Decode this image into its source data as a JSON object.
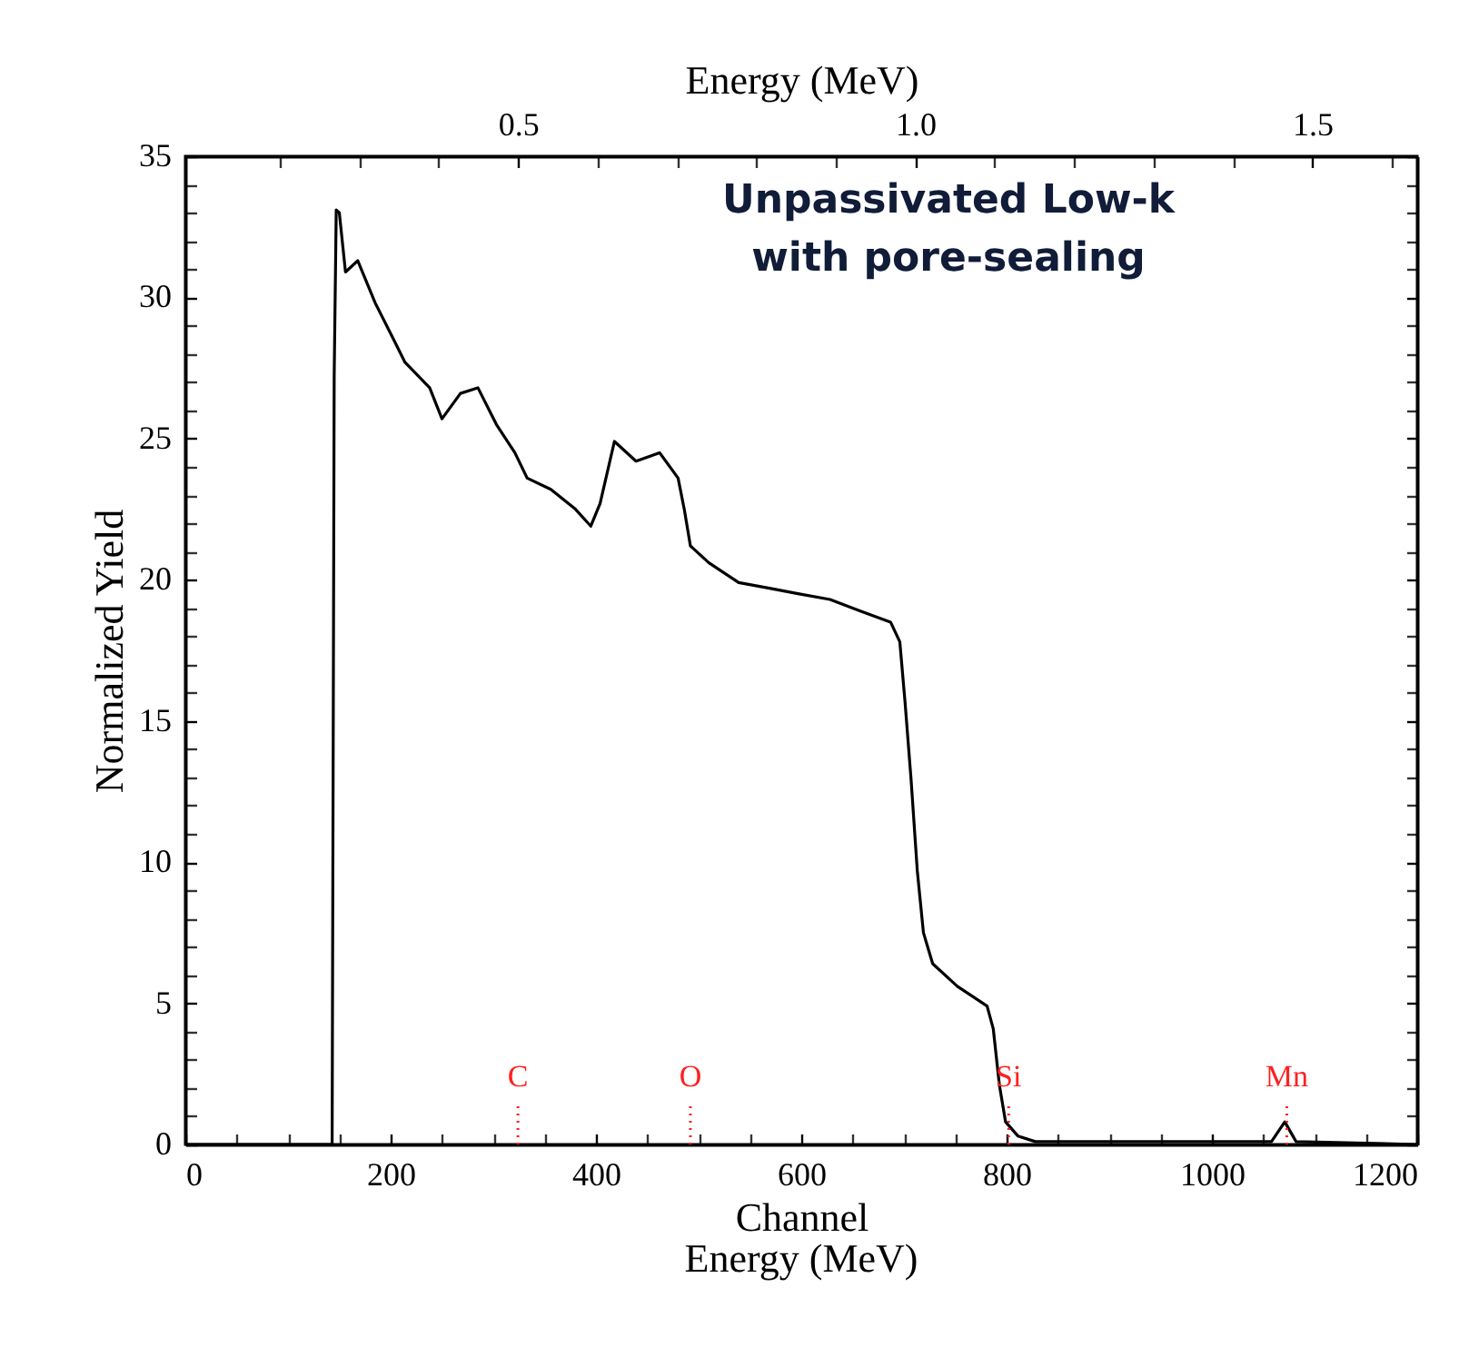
{
  "chart_data": {
    "type": "line",
    "title": "Unpassivated Low-k\nwith pore-sealing",
    "xlabel": "Channel",
    "ylabel": "Normalized Yield",
    "x2label": "Energy (MeV)",
    "annotations": [
      "Energy (MeV)"
    ],
    "ref_lines": [
      {
        "axis": "x",
        "value": 324,
        "label": "C",
        "color": "#ff2020",
        "line_style": "dotted"
      },
      {
        "axis": "x",
        "value": 492,
        "label": "O",
        "color": "#ff2020",
        "line_style": "dotted"
      },
      {
        "axis": "x",
        "value": 802,
        "label": "Si",
        "color": "#ff2020",
        "line_style": "dotted"
      },
      {
        "axis": "x",
        "value": 1073,
        "label": "Mn",
        "color": "#ff2020",
        "line_style": "dotted"
      }
    ],
    "series": [
      {
        "color": "#000000",
        "x": [
          0,
          143,
          145,
          147,
          150,
          156,
          168,
          185,
          203,
          214,
          238,
          250,
          268,
          285,
          303,
          321,
          333,
          356,
          380,
          395,
          404,
          418,
          439,
          462,
          480,
          486,
          492,
          510,
          539,
          569,
          598,
          628,
          657,
          687,
          696,
          701,
          707,
          713,
          719,
          728,
          752,
          781,
          787,
          793,
          799,
          811,
          828,
          1058,
          1071,
          1082,
          1200
        ],
        "values": [
          0,
          0,
          27.2,
          33.1,
          33.0,
          30.9,
          31.3,
          29.8,
          28.5,
          27.7,
          26.8,
          25.7,
          26.6,
          26.8,
          25.5,
          24.5,
          23.6,
          23.2,
          22.5,
          21.9,
          22.7,
          24.9,
          24.2,
          24.5,
          23.6,
          22.5,
          21.2,
          20.6,
          19.9,
          19.7,
          19.5,
          19.3,
          18.9,
          18.5,
          17.8,
          15.7,
          12.9,
          9.7,
          7.5,
          6.4,
          5.6,
          4.9,
          4.1,
          2.1,
          0.8,
          0.3,
          0.1,
          0.1,
          0.8,
          0.1,
          0
        ]
      }
    ],
    "xlim": [
      0,
      1200
    ],
    "xticks": [
      0,
      {
        "value": 50,
        "label": null
      },
      {
        "value": 100,
        "label": null
      },
      {
        "value": 150,
        "label": null
      },
      200,
      {
        "value": 250,
        "label": null
      },
      {
        "value": 300,
        "label": null
      },
      {
        "value": 350,
        "label": null
      },
      400,
      {
        "value": 450,
        "label": null
      },
      {
        "value": 500,
        "label": null
      },
      {
        "value": 550,
        "label": null
      },
      600,
      {
        "value": 650,
        "label": null
      },
      {
        "value": 700,
        "label": null
      },
      {
        "value": 750,
        "label": null
      },
      800,
      {
        "value": 850,
        "label": null
      },
      {
        "value": 900,
        "label": null
      },
      {
        "value": 950,
        "label": null
      },
      1000,
      {
        "value": 1050,
        "label": null
      },
      {
        "value": 1100,
        "label": null
      },
      {
        "value": 1150,
        "label": null
      },
      1200
    ],
    "ylim": [
      0,
      35
    ],
    "yticks": [
      0,
      {
        "value": 1,
        "label": null
      },
      {
        "value": 2,
        "label": null
      },
      {
        "value": 3,
        "label": null
      },
      {
        "value": 4,
        "label": null
      },
      5,
      {
        "value": 6,
        "label": null
      },
      {
        "value": 7,
        "label": null
      },
      {
        "value": 8,
        "label": null
      },
      {
        "value": 9,
        "label": null
      },
      10,
      {
        "value": 11,
        "label": null
      },
      {
        "value": 12,
        "label": null
      },
      {
        "value": 13,
        "label": null
      },
      {
        "value": 14,
        "label": null
      },
      15,
      {
        "value": 16,
        "label": null
      },
      {
        "value": 17,
        "label": null
      },
      {
        "value": 18,
        "label": null
      },
      {
        "value": 19,
        "label": null
      },
      20,
      {
        "value": 21,
        "label": null
      },
      {
        "value": 22,
        "label": null
      },
      {
        "value": 23,
        "label": null
      },
      {
        "value": 24,
        "label": null
      },
      25,
      {
        "value": 26,
        "label": null
      },
      {
        "value": 27,
        "label": null
      },
      {
        "value": 28,
        "label": null
      },
      {
        "value": 29,
        "label": null
      },
      30,
      {
        "value": 31,
        "label": null
      },
      {
        "value": 32,
        "label": null
      },
      {
        "value": 33,
        "label": null
      },
      {
        "value": 34,
        "label": null
      },
      35
    ],
    "x2lim": [
      0.081,
      1.632
    ],
    "x2ticks": [
      {
        "value": 0.2,
        "label": null
      },
      {
        "value": 0.3,
        "label": null
      },
      {
        "value": 0.4,
        "label": null
      },
      {
        "value": 0.5,
        "label": "0.5"
      },
      {
        "value": 0.6,
        "label": null
      },
      {
        "value": 0.7,
        "label": null
      },
      {
        "value": 0.8,
        "label": null
      },
      {
        "value": 0.9,
        "label": null
      },
      {
        "value": 1.0,
        "label": "1.0"
      },
      {
        "value": 1.1,
        "label": null
      },
      {
        "value": 1.2,
        "label": null
      },
      {
        "value": 1.3,
        "label": null
      },
      {
        "value": 1.4,
        "label": null
      },
      {
        "value": 1.5,
        "label": "1.5"
      },
      {
        "value": 1.6,
        "label": null
      }
    ],
    "line_style": "solid"
  }
}
